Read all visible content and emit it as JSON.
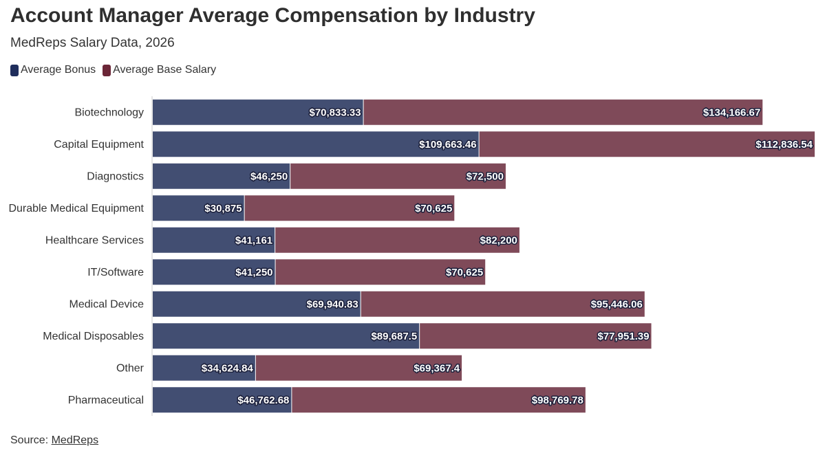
{
  "header": {
    "title": "Account Manager Average Compensation by Industry",
    "subtitle": "MedReps Salary Data, 2026"
  },
  "legend": {
    "items": [
      {
        "label": "Average Bonus",
        "color": "#1f2d5c"
      },
      {
        "label": "Average Base Salary",
        "color": "#6b2637"
      }
    ]
  },
  "footer": {
    "source_prefix": "Source: ",
    "source_link": "MedReps"
  },
  "chart_data": {
    "type": "bar",
    "orientation": "horizontal",
    "stacked": true,
    "categories": [
      "Biotechnology",
      "Capital Equipment",
      "Diagnostics",
      "Durable Medical Equipment",
      "Healthcare Services",
      "IT/Software",
      "Medical Device",
      "Medical Disposables",
      "Other",
      "Pharmaceutical"
    ],
    "series": [
      {
        "name": "Average Bonus",
        "color": "#424e72",
        "values": [
          70833.33,
          109663.46,
          46250,
          30875,
          41161,
          41250,
          69940.83,
          89687.5,
          34624.84,
          46762.68
        ],
        "labels": [
          "$70,833.33",
          "$109,663.46",
          "$46,250",
          "$30,875",
          "$41,161",
          "$41,250",
          "$69,940.83",
          "$89,687.5",
          "$34,624.84",
          "$46,762.68"
        ]
      },
      {
        "name": "Average Base Salary",
        "color": "#7f4a59",
        "values": [
          134166.67,
          112836.54,
          72500,
          70625,
          82200,
          70625,
          95446.06,
          77951.39,
          69367.4,
          98769.78
        ],
        "labels": [
          "$134,166.67",
          "$112,836.54",
          "$72,500",
          "$70,625",
          "$82,200",
          "$70,625",
          "$95,446.06",
          "$77,951.39",
          "$69,367.4",
          "$98,769.78"
        ]
      }
    ],
    "xlim": [
      0,
      222500
    ],
    "grid": false,
    "legend_position": "top-left"
  }
}
